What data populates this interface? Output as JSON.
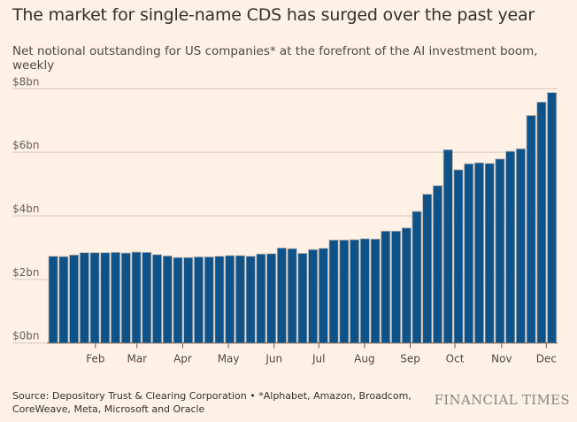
{
  "chart_data": {
    "type": "bar",
    "title": "The market for single-name CDS has surged over the past year",
    "subtitle": "Net notional outstanding for US companies* at the forefront of the AI investment boom, weekly",
    "ylabel": "",
    "xlabel": "",
    "unit": "$bn",
    "ylim": [
      0,
      8
    ],
    "yticks": [
      "$0bn",
      "$2bn",
      "$4bn",
      "$6bn",
      "$8bn"
    ],
    "xticks": [
      "Feb",
      "Mar",
      "Apr",
      "May",
      "Jun",
      "Jul",
      "Aug",
      "Sep",
      "Oct",
      "Nov",
      "Dec"
    ],
    "grid": true,
    "values": [
      2.73,
      2.72,
      2.77,
      2.84,
      2.84,
      2.84,
      2.85,
      2.83,
      2.86,
      2.85,
      2.78,
      2.74,
      2.69,
      2.69,
      2.71,
      2.71,
      2.73,
      2.75,
      2.75,
      2.73,
      2.8,
      2.81,
      2.99,
      2.97,
      2.82,
      2.94,
      2.98,
      3.24,
      3.24,
      3.25,
      3.28,
      3.27,
      3.52,
      3.52,
      3.62,
      4.14,
      4.68,
      4.95,
      6.08,
      5.45,
      5.64,
      5.67,
      5.65,
      5.79,
      6.03,
      6.11,
      7.16,
      7.58,
      7.88
    ],
    "colors": {
      "bar": "#0D5289",
      "bar_border": "#b9b3ad",
      "grid": "#d2c6bb",
      "background": "#FFF1E5"
    }
  },
  "footer": {
    "source": "Source: Depository Trust & Clearing Corporation • *Alphabet, Amazon, Broadcom, CoreWeave, Meta, Microsoft and Oracle",
    "logo": "FINANCIAL TIMES"
  }
}
